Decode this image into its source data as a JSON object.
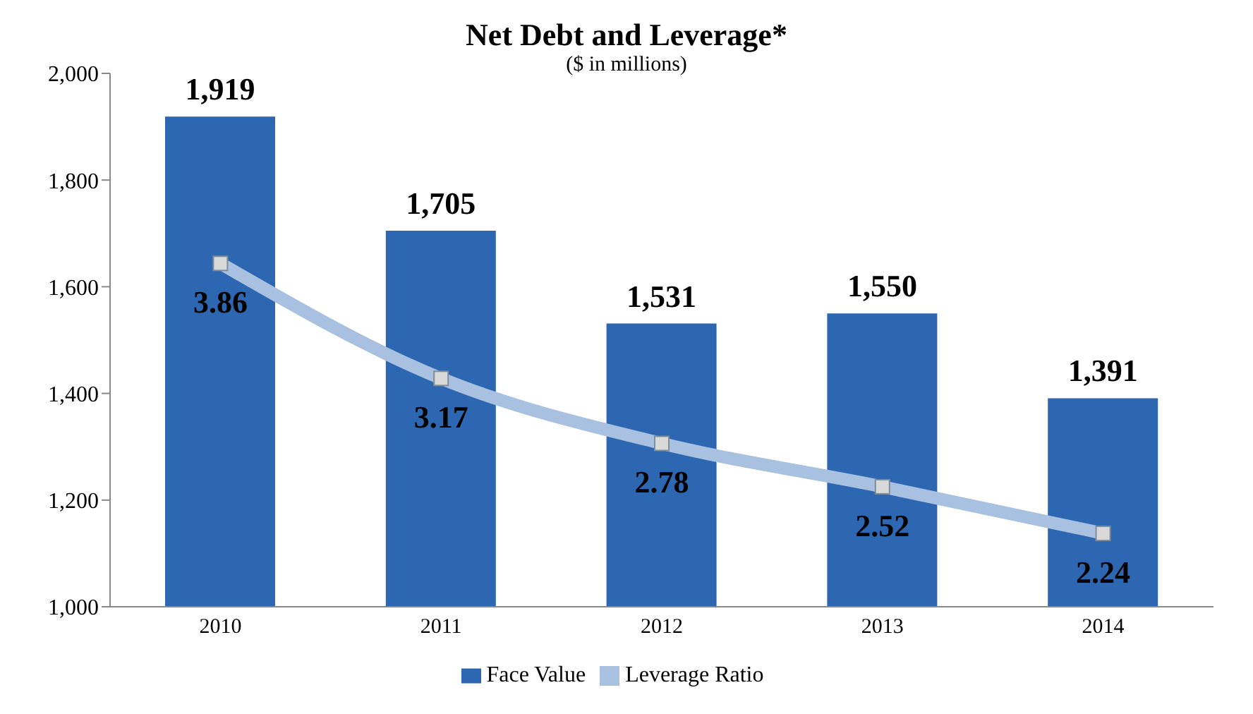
{
  "chart_data": {
    "type": "bar",
    "title": "Net Debt and Leverage*",
    "subtitle": "($ in millions)",
    "categories": [
      "2010",
      "2011",
      "2012",
      "2013",
      "2014"
    ],
    "series": [
      {
        "name": "Face Value",
        "color": "#2e67b1",
        "values": [
          1919,
          1705,
          1531,
          1550,
          1391
        ],
        "value_labels": [
          "1,919",
          "1,705",
          "1,531",
          "1,550",
          "1,391"
        ]
      },
      {
        "name": "Leverage Ratio",
        "type": "line",
        "axis": "y2",
        "color": "#a9c1e0",
        "marker": "square",
        "values": [
          3.86,
          3.17,
          2.78,
          2.52,
          2.24
        ],
        "value_labels": [
          "3.86",
          "3.17",
          "2.78",
          "2.52",
          "2.24"
        ]
      }
    ],
    "ylim": [
      1000,
      2000
    ],
    "yticks": [
      {
        "value": 1000,
        "label": "1,000"
      },
      {
        "value": 1200,
        "label": "1,200"
      },
      {
        "value": 1400,
        "label": "1,400"
      },
      {
        "value": 1600,
        "label": "1,600"
      },
      {
        "value": 1800,
        "label": "1,800"
      },
      {
        "value": 2000,
        "label": "2,000"
      }
    ],
    "y2lim": [
      1.8,
      5.0
    ],
    "grid": false,
    "legend": "bottom"
  }
}
